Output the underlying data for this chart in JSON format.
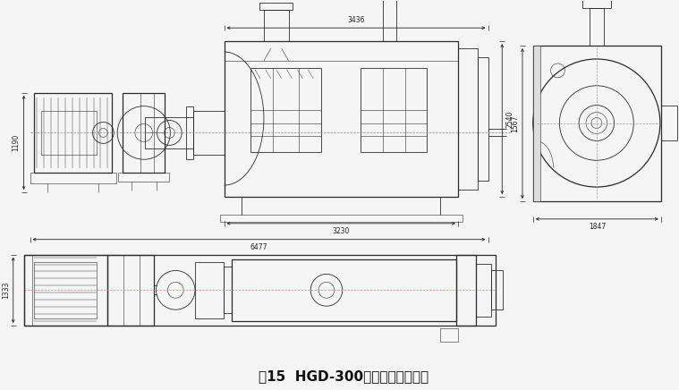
{
  "title": "图15  HGD-300型干式混合机外形",
  "title_fontsize": 11,
  "bg_color": "#f5f5f5",
  "line_color": "#2a2a2a",
  "dim_color": "#222222",
  "fig_width": 7.59,
  "fig_height": 4.36,
  "dpi": 100,
  "dim_labels": {
    "top_width": "3436",
    "mid_width": "3230",
    "total_width": "6477",
    "height_left": "1190",
    "height_right": "2540",
    "side_height": "1567",
    "side_width": "1847",
    "bottom_length": "1333"
  }
}
